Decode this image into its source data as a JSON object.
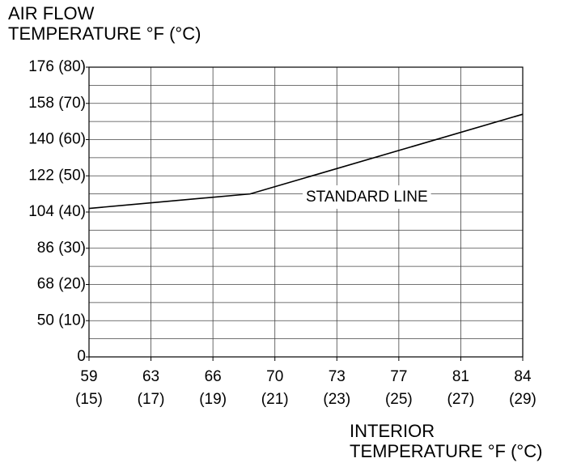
{
  "chart_data": {
    "type": "line",
    "ylabel": [
      "AIR FLOW",
      "TEMPERATURE °F (°C)"
    ],
    "xlabel": [
      "INTERIOR",
      "TEMPERATURE °F (°C)"
    ],
    "xlim": [
      15,
      29
    ],
    "xticks": [
      {
        "value": 15,
        "label": "59 (15)"
      },
      {
        "value": 17,
        "label": "63 (17)"
      },
      {
        "value": 19,
        "label": "66 (19)"
      },
      {
        "value": 21,
        "label": "70 (21)"
      },
      {
        "value": 23,
        "label": "73 (23)"
      },
      {
        "value": 25,
        "label": "77 (25)"
      },
      {
        "value": 27,
        "label": "81 (27)"
      },
      {
        "value": 29,
        "label": "84 (29)"
      }
    ],
    "ylim": [
      0,
      80
    ],
    "yticks": [
      0,
      {
        "value": 10,
        "label": "50 (10)"
      },
      {
        "value": 20,
        "label": "68 (20)"
      },
      {
        "value": 30,
        "label": "86 (30)"
      },
      {
        "value": 40,
        "label": "104 (40)"
      },
      {
        "value": 50,
        "label": "122 (50)"
      },
      {
        "value": 60,
        "label": "140 (60)"
      },
      {
        "value": 70,
        "label": "158 (70)"
      },
      {
        "value": 80,
        "label": "176 (80)"
      }
    ],
    "grid": true,
    "series": [
      {
        "name": "STANDARD LINE",
        "color": "#000000",
        "x": [
          15,
          20.2,
          29
        ],
        "values": [
          41,
          45,
          67
        ]
      }
    ]
  }
}
